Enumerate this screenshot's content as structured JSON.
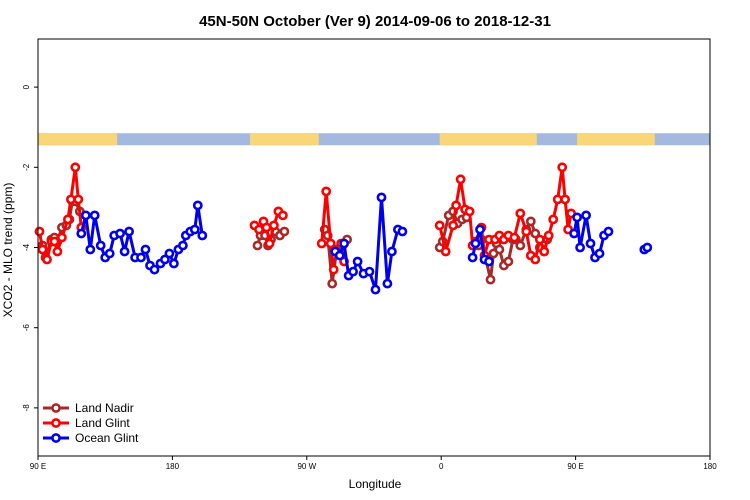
{
  "chart_data": {
    "type": "line",
    "title": "45N-50N October (Ver 9)   2014-09-06 to 2018-12-31",
    "xlabel": "Longitude",
    "ylabel": "XCO2 - MLO trend (ppm)",
    "xlim": [
      90,
      540
    ],
    "ylim": [
      -9.2,
      1.2
    ],
    "x_ticks": [
      {
        "value": 90,
        "label": "90 E"
      },
      {
        "value": 180,
        "label": "180"
      },
      {
        "value": 270,
        "label": "90 W"
      },
      {
        "value": 360,
        "label": "0"
      },
      {
        "value": 450,
        "label": "90 E"
      },
      {
        "value": 540,
        "label": "180"
      }
    ],
    "y_ticks": [
      {
        "value": 0,
        "label": "0"
      },
      {
        "value": -2,
        "label": "-2"
      },
      {
        "value": -4,
        "label": "-4"
      },
      {
        "value": -6,
        "label": "-6"
      },
      {
        "value": -8,
        "label": "-8"
      }
    ],
    "legend_position": "bottom-left",
    "land_mask_band": {
      "y_range": [
        -1.45,
        -1.15
      ],
      "land_color": "#f9d678",
      "ocean_color": "#a3b9df",
      "land_segments": [
        [
          90,
          143
        ],
        [
          232,
          278
        ],
        [
          359,
          424
        ],
        [
          451,
          503
        ]
      ]
    },
    "series": [
      {
        "name": "Land Nadir",
        "color": "#a52a2a",
        "segments": [
          [
            [
              93,
              -3.95
            ],
            [
              95,
              -4.25
            ],
            [
              99,
              -3.8
            ],
            [
              101,
              -3.75
            ],
            [
              103,
              -3.85
            ],
            [
              106,
              -3.5
            ],
            [
              109,
              -3.45
            ],
            [
              111,
              -3.3
            ],
            [
              113,
              -2.85
            ],
            [
              115,
              -2.85
            ],
            [
              118,
              -3.1
            ]
          ],
          [
            [
              237,
              -3.95
            ],
            [
              239,
              -3.7
            ],
            [
              242,
              -3.7
            ],
            [
              244,
              -3.95
            ],
            [
              246,
              -3.8
            ],
            [
              249,
              -3.6
            ],
            [
              252,
              -3.7
            ],
            [
              255,
              -3.6
            ]
          ],
          [
            [
              282,
              -3.55
            ],
            [
              284,
              -3.7
            ],
            [
              287,
              -4.9
            ],
            [
              290,
              -4.05
            ],
            [
              294,
              -3.95
            ],
            [
              297,
              -3.8
            ]
          ],
          [
            [
              359,
              -4.0
            ],
            [
              361,
              -3.85
            ],
            [
              365,
              -3.2
            ],
            [
              368,
              -3.1
            ],
            [
              371,
              -3.4
            ],
            [
              374,
              -3.3
            ],
            [
              377,
              -3.25
            ]
          ],
          [
            [
              385,
              -3.95
            ],
            [
              387,
              -3.8
            ],
            [
              390,
              -4.3
            ],
            [
              393,
              -4.8
            ],
            [
              395,
              -4.15
            ],
            [
              397,
              -3.9
            ],
            [
              399,
              -4.05
            ],
            [
              402,
              -4.45
            ],
            [
              405,
              -4.35
            ],
            [
              408,
              -3.8
            ],
            [
              410,
              -3.8
            ],
            [
              413,
              -3.95
            ],
            [
              417,
              -3.55
            ],
            [
              420,
              -3.35
            ],
            [
              423,
              -3.65
            ],
            [
              426,
              -4.0
            ],
            [
              429,
              -4.1
            ],
            [
              431,
              -3.8
            ]
          ]
        ]
      },
      {
        "name": "Land Glint",
        "color": "#ff0000",
        "segments": [
          [
            [
              91,
              -3.6
            ],
            [
              93,
              -4.05
            ],
            [
              96,
              -4.3
            ],
            [
              99,
              -3.85
            ],
            [
              101,
              -3.85
            ],
            [
              103,
              -4.1
            ],
            [
              106,
              -3.75
            ],
            [
              110,
              -3.3
            ],
            [
              112,
              -2.8
            ],
            [
              115,
              -2.0
            ],
            [
              117,
              -2.8
            ],
            [
              119,
              -3.5
            ]
          ],
          [
            [
              235,
              -3.45
            ],
            [
              238,
              -3.55
            ],
            [
              241,
              -3.35
            ],
            [
              243,
              -3.5
            ],
            [
              245,
              -3.9
            ],
            [
              248,
              -3.45
            ],
            [
              251,
              -3.1
            ],
            [
              254,
              -3.2
            ]
          ],
          [
            [
              280,
              -3.9
            ],
            [
              283,
              -2.6
            ],
            [
              286,
              -3.9
            ],
            [
              288,
              -4.55
            ]
          ],
          [
            [
              293,
              -3.9
            ],
            [
              295,
              -4.35
            ]
          ],
          [
            [
              359,
              -3.45
            ],
            [
              363,
              -4.1
            ],
            [
              368,
              -3.45
            ],
            [
              370,
              -2.95
            ],
            [
              373,
              -2.3
            ],
            [
              376,
              -3.05
            ],
            [
              379,
              -3.1
            ],
            [
              381,
              -3.95
            ],
            [
              383,
              -3.85
            ],
            [
              387,
              -3.5
            ],
            [
              389,
              -4.2
            ],
            [
              392,
              -3.8
            ],
            [
              396,
              -3.8
            ],
            [
              399,
              -3.7
            ],
            [
              402,
              -3.8
            ],
            [
              405,
              -3.7
            ],
            [
              409,
              -3.75
            ],
            [
              413,
              -3.15
            ],
            [
              417,
              -3.6
            ],
            [
              420,
              -4.2
            ],
            [
              423,
              -4.3
            ],
            [
              426,
              -3.8
            ],
            [
              429,
              -4.1
            ],
            [
              432,
              -3.7
            ],
            [
              435,
              -3.3
            ],
            [
              438,
              -2.8
            ],
            [
              441,
              -2.0
            ],
            [
              443,
              -2.8
            ],
            [
              445,
              -3.55
            ],
            [
              447,
              -3.15
            ]
          ]
        ]
      },
      {
        "name": "Ocean Glint",
        "color": "#0000ee",
        "segments": [
          [
            [
              119,
              -3.65
            ],
            [
              122,
              -3.2
            ],
            [
              125,
              -4.05
            ],
            [
              128,
              -3.2
            ],
            [
              132,
              -3.95
            ],
            [
              135,
              -4.25
            ],
            [
              138,
              -4.15
            ],
            [
              141,
              -3.7
            ],
            [
              145,
              -3.65
            ],
            [
              148,
              -4.1
            ],
            [
              151,
              -3.6
            ],
            [
              155,
              -4.25
            ],
            [
              159,
              -4.25
            ],
            [
              162,
              -4.05
            ],
            [
              165,
              -4.45
            ],
            [
              168,
              -4.55
            ],
            [
              172,
              -4.4
            ],
            [
              175,
              -4.3
            ],
            [
              178,
              -4.15
            ],
            [
              181,
              -4.4
            ],
            [
              184,
              -4.05
            ],
            [
              187,
              -3.95
            ],
            [
              189,
              -3.7
            ],
            [
              192,
              -3.6
            ],
            [
              195,
              -3.55
            ],
            [
              197,
              -2.95
            ],
            [
              200,
              -3.7
            ]
          ],
          [
            [
              289,
              -4.1
            ],
            [
              292,
              -4.2
            ],
            [
              295,
              -3.9
            ],
            [
              298,
              -4.7
            ],
            [
              301,
              -4.6
            ],
            [
              304,
              -4.35
            ],
            [
              308,
              -4.65
            ],
            [
              312,
              -4.6
            ],
            [
              316,
              -5.05
            ],
            [
              320,
              -2.75
            ],
            [
              324,
              -4.9
            ],
            [
              327,
              -4.1
            ],
            [
              331,
              -3.55
            ],
            [
              334,
              -3.6
            ]
          ],
          [
            [
              381,
              -4.25
            ],
            [
              383,
              -3.9
            ],
            [
              386,
              -3.55
            ],
            [
              389,
              -4.3
            ],
            [
              392,
              -4.35
            ]
          ],
          [
            [
              496,
              -4.05
            ],
            [
              498,
              -4.0
            ]
          ],
          [
            [
              449,
              -3.65
            ],
            [
              451,
              -3.25
            ],
            [
              453,
              -4.0
            ],
            [
              457,
              -3.2
            ],
            [
              460,
              -3.9
            ],
            [
              463,
              -4.25
            ],
            [
              466,
              -4.15
            ],
            [
              469,
              -3.7
            ],
            [
              472,
              -3.6
            ]
          ]
        ]
      }
    ]
  }
}
